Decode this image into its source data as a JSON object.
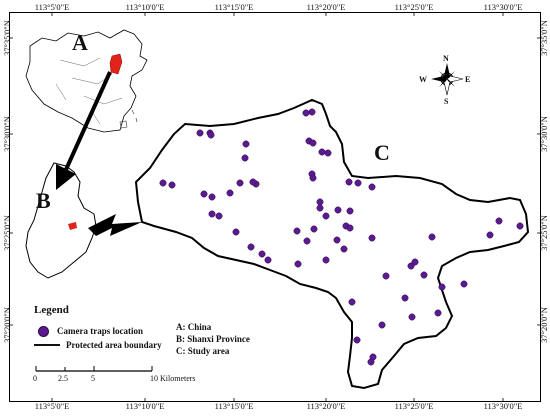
{
  "top_ticks": [
    "113°5'0\"E",
    "113°10'0\"E",
    "113°15'0\"E",
    "113°20'0\"E",
    "113°25'0\"E",
    "113°30'0\"E"
  ],
  "bottom_ticks": [
    "113°5'0\"E",
    "113°10'0\"E",
    "113°15'0\"E",
    "113°20'0\"E",
    "113°25'0\"E",
    "113°30'0\"E"
  ],
  "left_ticks": [
    "37°35'0\"N",
    "37°30'0\"N",
    "37°25'0\"N",
    "37°20'0\"N"
  ],
  "right_ticks": [
    "37°35'0\"N",
    "37°30'0\"N",
    "37°25'0\"N",
    "37°20'0\"N"
  ],
  "panels": {
    "a": "A",
    "b": "B",
    "c": "C"
  },
  "compass": {
    "n": "N",
    "s": "S",
    "e": "E",
    "w": "W"
  },
  "legend": {
    "title": "Legend",
    "camera": "Camera traps location",
    "boundary": "Protected area boundary"
  },
  "abbreviations": [
    "A: China",
    "B: Shanxi Province",
    "C: Study area"
  ],
  "scale_bar": {
    "labels": [
      "0",
      "2.5",
      "5",
      "10 Kilometers"
    ]
  },
  "colors": {
    "camera_trap": "#5b1a8f",
    "highlight": "#e0231b"
  },
  "camera_count": 66
}
